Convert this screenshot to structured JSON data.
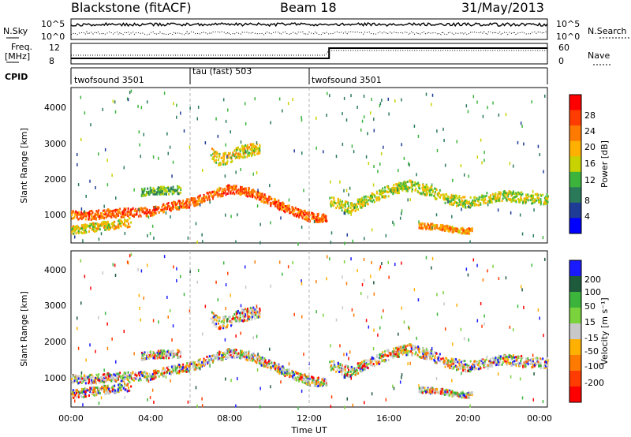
{
  "header": {
    "station": "Blackstone (fitACF)",
    "beam": "Beam 18",
    "date": "31/May/2013"
  },
  "top_panels": {
    "nsky_label": "N.Sky",
    "nsearch_label": "N.Search",
    "noise_ticks": [
      "10^5",
      "10^0"
    ],
    "freq_label_1": "Freq.",
    "freq_label_2": "[MHz]",
    "freq_ticks": [
      "12",
      "8"
    ],
    "nave_label": "Nave",
    "nave_ticks": [
      "60",
      "0"
    ],
    "cpid_label": "CPID",
    "cpid_segments": [
      {
        "label": "twofsound 3501",
        "start_h": 0,
        "end_h": 6
      },
      {
        "label": "tau (fast) 503",
        "start_h": 6,
        "end_h": 12
      },
      {
        "label": "twofsound 3501",
        "start_h": 12,
        "end_h": 24
      }
    ]
  },
  "axes": {
    "ylabel": "Slant Range [km]",
    "xlabel": "Time UT",
    "yticks": [
      "4000",
      "3000",
      "2000",
      "1000"
    ],
    "xticks": [
      "00:00",
      "04:00",
      "08:00",
      "12:00",
      "16:00",
      "20:00",
      "00:00"
    ]
  },
  "colorbars": {
    "power_label": "Power [dB]",
    "power_ticks": [
      "28",
      "24",
      "20",
      "16",
      "12",
      "8",
      "4"
    ],
    "power_colors": [
      "#ff0000",
      "#ff3c00",
      "#ff7a00",
      "#ffb000",
      "#c8d200",
      "#3cb43c",
      "#2a7a5a",
      "#1e3c96",
      "#0000ff"
    ],
    "velocity_label": "Velocity [m s⁻¹]",
    "velocity_ticks": [
      "200",
      "100",
      "50",
      "15",
      "-15",
      "-50",
      "-100",
      "-200"
    ],
    "velocity_colors": [
      "#1a1aff",
      "#1e5a3c",
      "#3cb43c",
      "#7ad23c",
      "#c8c8c8",
      "#ffb000",
      "#ff7a00",
      "#ff3c00",
      "#ff0000"
    ]
  },
  "chart_data": {
    "type": "heatmap",
    "x_range_h": [
      0,
      24
    ],
    "y_range_km": [
      180,
      4600
    ],
    "power_range_db": [
      0,
      32
    ],
    "velocity_range_ms": [
      -250,
      250
    ],
    "bands": [
      {
        "kind": "power",
        "points": [
          [
            0,
            1000
          ],
          [
            1,
            1000
          ],
          [
            2,
            1050
          ],
          [
            3,
            1080
          ],
          [
            4,
            1100
          ],
          [
            5,
            1250
          ],
          [
            6,
            1350
          ],
          [
            7,
            1550
          ],
          [
            8,
            1750
          ],
          [
            9,
            1650
          ],
          [
            10,
            1400
          ],
          [
            11,
            1150
          ],
          [
            12,
            950
          ],
          [
            12.9,
            900
          ]
        ],
        "width_km": 250,
        "level_db": 26
      },
      {
        "kind": "power",
        "points": [
          [
            0,
            560
          ],
          [
            1,
            650
          ],
          [
            2,
            720
          ],
          [
            3,
            800
          ]
        ],
        "width_km": 250,
        "level_db": 18
      },
      {
        "kind": "power",
        "points": [
          [
            3.5,
            1650
          ],
          [
            4.5,
            1700
          ],
          [
            5.5,
            1720
          ]
        ],
        "width_km": 220,
        "level_db": 12
      },
      {
        "kind": "power",
        "points": [
          [
            7,
            2750
          ],
          [
            7.5,
            2550
          ],
          [
            8.5,
            2800
          ],
          [
            9.5,
            2900
          ]
        ],
        "width_km": 350,
        "level_db": 18
      },
      {
        "kind": "power",
        "points": [
          [
            13,
            1400
          ],
          [
            14,
            1200
          ],
          [
            15,
            1450
          ],
          [
            16,
            1700
          ],
          [
            17,
            1850
          ],
          [
            18,
            1700
          ],
          [
            19,
            1450
          ],
          [
            20,
            1350
          ],
          [
            21,
            1500
          ],
          [
            22,
            1550
          ],
          [
            23,
            1480
          ],
          [
            24,
            1450
          ]
        ],
        "width_km": 300,
        "level_db": 16
      },
      {
        "kind": "power",
        "points": [
          [
            17.5,
            700
          ],
          [
            18.5,
            660
          ],
          [
            19.5,
            560
          ],
          [
            20.2,
            550
          ]
        ],
        "width_km": 160,
        "level_db": 22
      }
    ]
  }
}
